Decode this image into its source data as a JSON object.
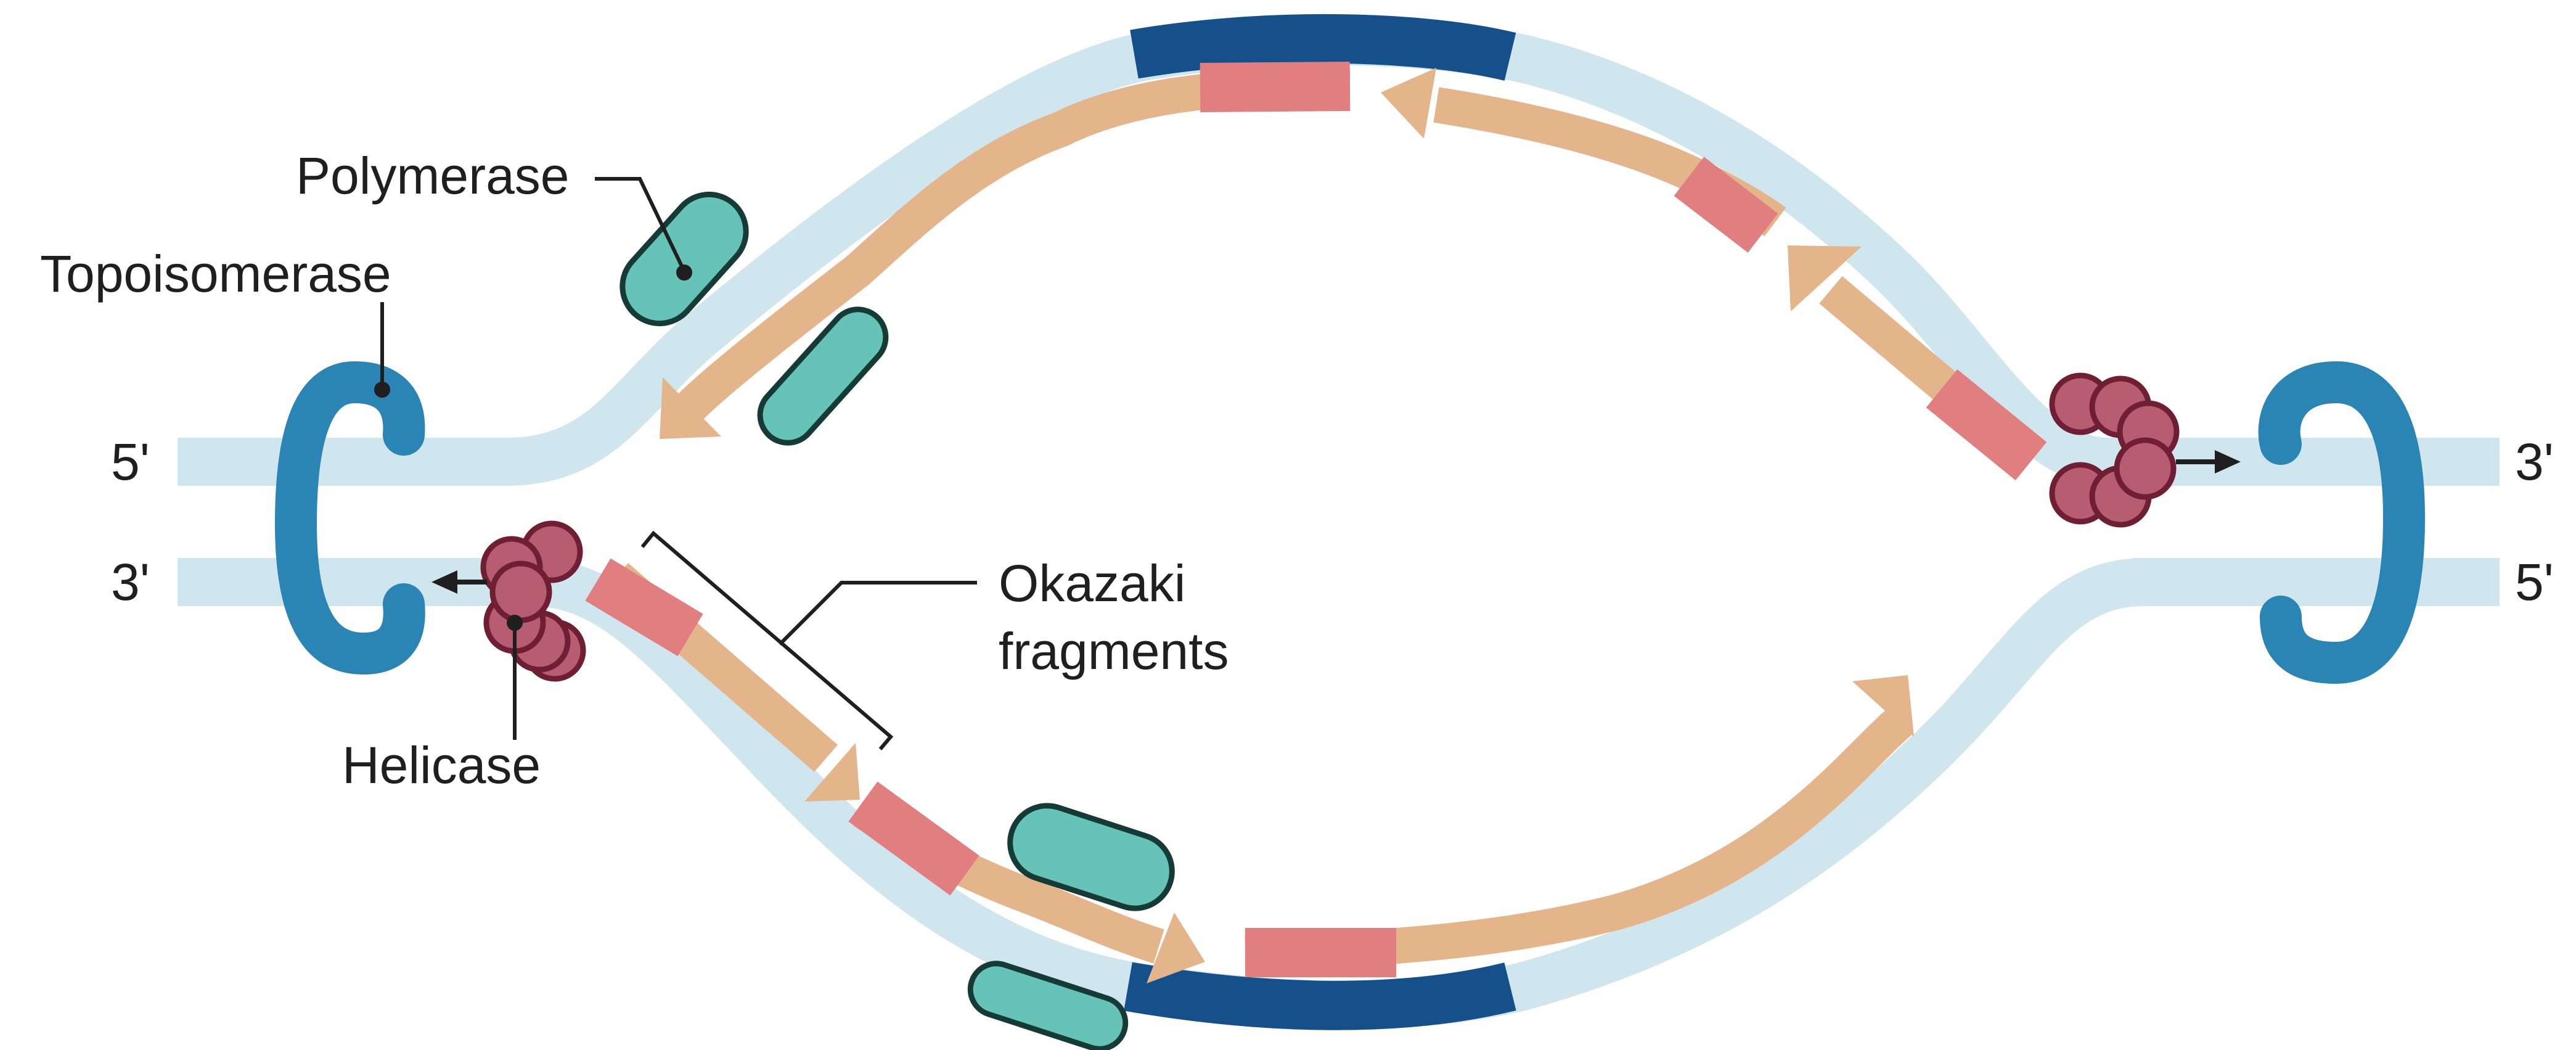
{
  "labels": {
    "polymerase": "Polymerase",
    "topoisomerase": "Topoisomerase",
    "helicase": "Helicase",
    "okazaki_line1": "Okazaki",
    "okazaki_line2": "fragments"
  },
  "strand_ends": {
    "left_top": "5'",
    "left_bottom": "3'",
    "right_top": "3'",
    "right_bottom": "5'"
  },
  "colors": {
    "parental_strand": "#d0e6ee",
    "new_strand": "#e4b48a",
    "primer": "#e07e80",
    "dark_segment": "#16508a",
    "topoisomerase": "#2a84b4",
    "polymerase_fill": "#66c3b8",
    "polymerase_stroke": "#163b36",
    "helicase_fill": "#b85c72",
    "helicase_stroke": "#6e1f34",
    "label_text": "#1f1f1f"
  }
}
